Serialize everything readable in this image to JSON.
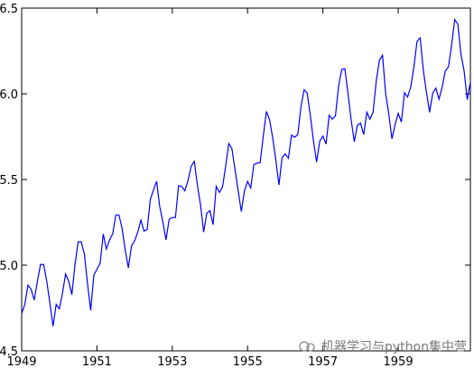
{
  "chart_data": {
    "type": "line",
    "title": "",
    "xlabel": "",
    "ylabel": "",
    "xlim": [
      1949.0,
      1960.9167
    ],
    "ylim": [
      4.5,
      6.5
    ],
    "x_ticks": [
      1949,
      1951,
      1953,
      1955,
      1957,
      1959
    ],
    "x_tick_labels": [
      "1949",
      "1951",
      "1953",
      "1955",
      "1957",
      "1959"
    ],
    "y_ticks": [
      4.5,
      5.0,
      5.5,
      6.0,
      6.5
    ],
    "y_tick_labels": [
      "4.5",
      "5.0",
      "5.5",
      "6.0",
      "6.5"
    ],
    "grid": false,
    "line_color": "#0000ff",
    "series": [
      {
        "start_year": 1949,
        "frequency": "monthly",
        "values": [
          4.718,
          4.771,
          4.883,
          4.86,
          4.796,
          4.905,
          5.004,
          5.004,
          4.905,
          4.779,
          4.644,
          4.771,
          4.745,
          4.836,
          4.949,
          4.905,
          4.828,
          5.004,
          5.136,
          5.136,
          5.063,
          4.89,
          4.736,
          4.942,
          4.977,
          5.011,
          5.182,
          5.094,
          5.147,
          5.182,
          5.293,
          5.293,
          5.215,
          5.088,
          4.984,
          5.112,
          5.142,
          5.193,
          5.263,
          5.199,
          5.209,
          5.384,
          5.438,
          5.489,
          5.342,
          5.252,
          5.148,
          5.268,
          5.278,
          5.278,
          5.464,
          5.46,
          5.434,
          5.493,
          5.576,
          5.606,
          5.468,
          5.352,
          5.193,
          5.303,
          5.318,
          5.236,
          5.46,
          5.425,
          5.455,
          5.576,
          5.71,
          5.68,
          5.557,
          5.434,
          5.313,
          5.434,
          5.489,
          5.451,
          5.587,
          5.595,
          5.598,
          5.753,
          5.897,
          5.849,
          5.743,
          5.613,
          5.468,
          5.628,
          5.649,
          5.624,
          5.759,
          5.746,
          5.762,
          5.924,
          6.023,
          6.004,
          5.872,
          5.724,
          5.602,
          5.724,
          5.753,
          5.707,
          5.875,
          5.852,
          5.872,
          6.045,
          6.142,
          6.146,
          6.001,
          5.849,
          5.72,
          5.817,
          5.829,
          5.762,
          5.892,
          5.852,
          5.894,
          6.075,
          6.196,
          6.225,
          6.001,
          5.883,
          5.737,
          5.82,
          5.886,
          5.835,
          6.006,
          5.981,
          6.04,
          6.157,
          6.306,
          6.326,
          6.138,
          6.009,
          5.892,
          6.004,
          6.033,
          5.969,
          6.038,
          6.133,
          6.157,
          6.282,
          6.433,
          6.407,
          6.23,
          6.133,
          5.966,
          6.068
        ]
      }
    ]
  },
  "watermark": {
    "icon": "wechat-icon",
    "text": "机器学习与python集中营"
  }
}
